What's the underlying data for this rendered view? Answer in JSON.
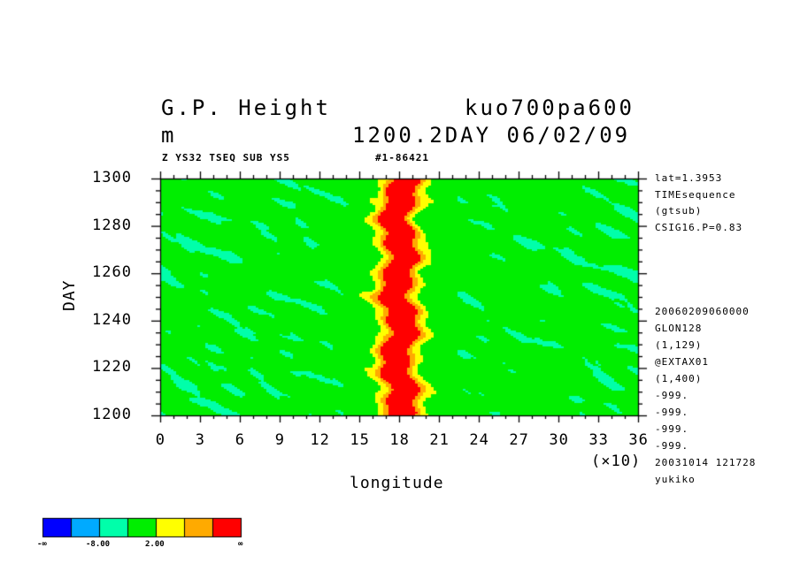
{
  "header": {
    "title": "G.P. Height",
    "units": "m",
    "run_name": "kuo700pa600",
    "time_label": "1200.2DAY 06/02/09",
    "subtitle": "Z YS32 TSEQ SUB YS5",
    "run_id": "#1-86421"
  },
  "side_info": {
    "top": [
      "lat=1.3953",
      "TIMEsequence",
      "(gtsub)",
      "CSIG16.P=0.83"
    ],
    "bottom": [
      "20060209060000",
      "GLON128",
      "(1,129)",
      "@EXTAX01",
      "(1,400)",
      "-999.",
      "-999.",
      "-999.",
      "-999.",
      "20031014 121728",
      "yukiko"
    ]
  },
  "legend": {
    "labels": [
      "-∞",
      "-8.00",
      "2.00",
      "∞"
    ],
    "colors": [
      "#0000ff",
      "#00aaff",
      "#00ffaa",
      "#00ee00",
      "#ffff00",
      "#ffaa00",
      "#ff0000"
    ]
  },
  "chart_data": {
    "type": "heatmap",
    "title": "G.P. Height",
    "xlabel": "longitude",
    "ylabel": "DAY",
    "x_multiplier": "(×10)",
    "xlim": [
      0,
      36
    ],
    "ylim": [
      1200,
      1300
    ],
    "xticks": [
      "0",
      "3",
      "6",
      "9",
      "12",
      "15",
      "18",
      "21",
      "24",
      "27",
      "30",
      "33",
      "36"
    ],
    "yticks": [
      "1200",
      "1220",
      "1240",
      "1260",
      "1280",
      "1300"
    ],
    "colorbar_levels": [
      "-∞",
      "-8.00",
      "2.00",
      "∞"
    ],
    "features": {
      "max_band_center_x": 18,
      "red_band_halfwidth_x": 1.0,
      "background_class": "green / cyan-green"
    }
  }
}
